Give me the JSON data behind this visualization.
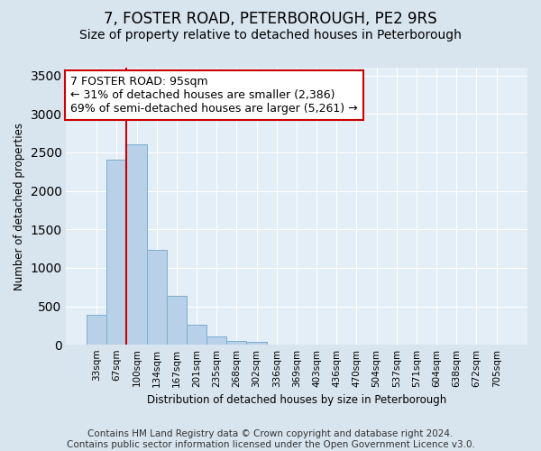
{
  "title": "7, FOSTER ROAD, PETERBOROUGH, PE2 9RS",
  "subtitle": "Size of property relative to detached houses in Peterborough",
  "xlabel": "Distribution of detached houses by size in Peterborough",
  "ylabel": "Number of detached properties",
  "categories": [
    "33sqm",
    "67sqm",
    "100sqm",
    "134sqm",
    "167sqm",
    "201sqm",
    "235sqm",
    "268sqm",
    "302sqm",
    "336sqm",
    "369sqm",
    "403sqm",
    "436sqm",
    "470sqm",
    "504sqm",
    "537sqm",
    "571sqm",
    "604sqm",
    "638sqm",
    "672sqm",
    "705sqm"
  ],
  "values": [
    390,
    2400,
    2610,
    1230,
    640,
    260,
    110,
    55,
    40,
    0,
    0,
    0,
    0,
    0,
    0,
    0,
    0,
    0,
    0,
    0,
    0
  ],
  "bar_color": "#b8d0e8",
  "bar_edge_color": "#7aaed0",
  "vline_color": "#cc0000",
  "vline_x_index": 2,
  "annotation_line1": "7 FOSTER ROAD: 95sqm",
  "annotation_line2": "← 31% of detached houses are smaller (2,386)",
  "annotation_line3": "69% of semi-detached houses are larger (5,261) →",
  "annotation_box_color": "#ffffff",
  "annotation_box_edge_color": "#cc0000",
  "ylim": [
    0,
    3600
  ],
  "yticks": [
    0,
    500,
    1000,
    1500,
    2000,
    2500,
    3000,
    3500
  ],
  "background_color": "#d8e4ee",
  "plot_bg_color": "#e4eef6",
  "grid_color": "#ffffff",
  "footer_line1": "Contains HM Land Registry data © Crown copyright and database right 2024.",
  "footer_line2": "Contains public sector information licensed under the Open Government Licence v3.0.",
  "title_fontsize": 12,
  "subtitle_fontsize": 10,
  "annotation_fontsize": 9,
  "axis_label_fontsize": 8.5,
  "tick_fontsize": 7.5,
  "footer_fontsize": 7.5
}
